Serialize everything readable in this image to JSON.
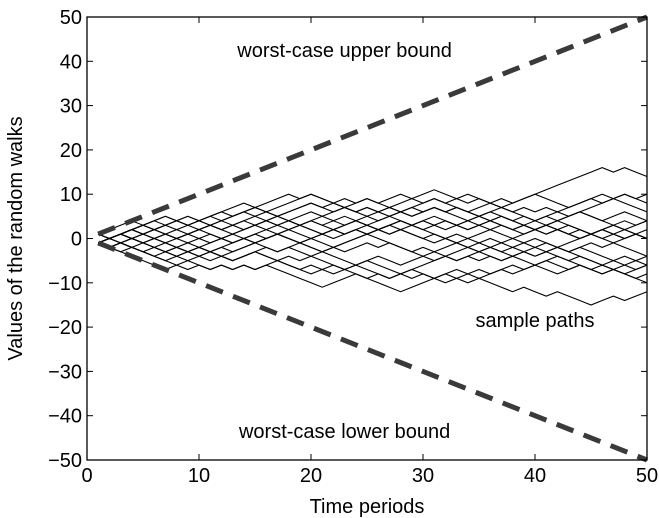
{
  "chart_data": {
    "type": "line",
    "title": "",
    "xlabel": "Time periods",
    "ylabel": "Values of the random walks",
    "xlim": [
      0,
      50
    ],
    "ylim": [
      -50,
      50
    ],
    "grid": false,
    "x_ticks": [
      "0",
      "10",
      "20",
      "30",
      "40",
      "50"
    ],
    "y_ticks": [
      "−50",
      "−40",
      "−30",
      "−20",
      "−10",
      "0",
      "10",
      "20",
      "30",
      "40",
      "50"
    ],
    "series": [
      {
        "style": "dashed",
        "color": "#3a3a3a",
        "x": [
          1,
          50
        ],
        "y": [
          1,
          50
        ]
      },
      {
        "style": "dashed",
        "color": "#3a3a3a",
        "x": [
          1,
          50
        ],
        "y": [
          -1,
          -50
        ]
      }
    ],
    "sample_paths": {
      "color": "#000000",
      "count": 20,
      "periods": 50,
      "approx_final_range": [
        -12,
        21
      ]
    },
    "annotations": [
      {
        "text": "worst-case upper bound",
        "x": 23,
        "y": 41
      },
      {
        "text": "sample paths",
        "x": 40,
        "y": -20
      },
      {
        "text": "worst-case lower bound",
        "x": 23,
        "y": -45
      }
    ]
  }
}
